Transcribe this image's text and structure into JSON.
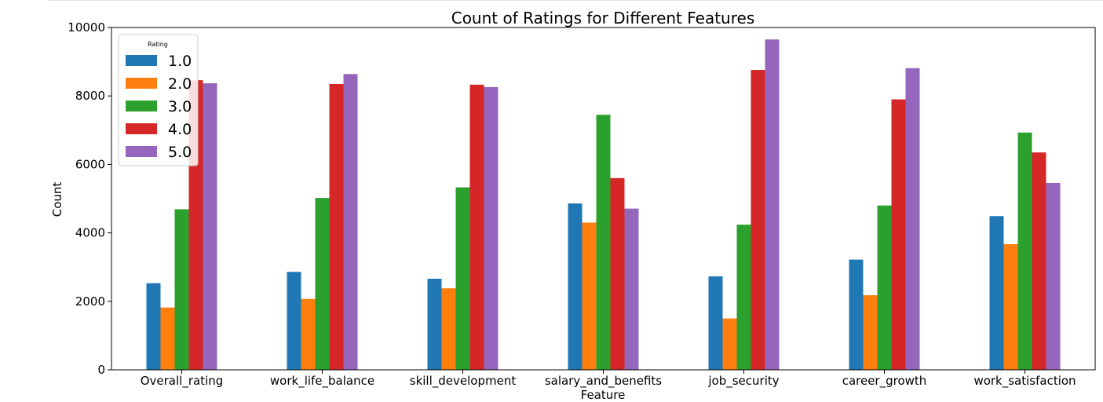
{
  "chart_data": {
    "type": "bar",
    "title": "Count of Ratings for Different Features",
    "xlabel": "Feature",
    "ylabel": "Count",
    "ylim": [
      0,
      10000
    ],
    "yticks": [
      "0",
      "2000",
      "4000",
      "6000",
      "8000",
      "10000"
    ],
    "categories": [
      "Overall_rating",
      "work_life_balance",
      "skill_development",
      "salary_and_benefits",
      "job_security",
      "career_growth",
      "work_satisfaction"
    ],
    "legend": {
      "title": "Rating",
      "placement": "top-left"
    },
    "series": [
      {
        "name": "1.0",
        "color": "#1f77b4",
        "values": [
          2530,
          2860,
          2660,
          4860,
          2730,
          3220,
          4490
        ]
      },
      {
        "name": "2.0",
        "color": "#ff7f0e",
        "values": [
          1820,
          2070,
          2380,
          4300,
          1500,
          2180,
          3670
        ]
      },
      {
        "name": "3.0",
        "color": "#2ca02c",
        "values": [
          4690,
          5020,
          5330,
          7450,
          4240,
          4800,
          6930
        ]
      },
      {
        "name": "4.0",
        "color": "#d62728",
        "values": [
          8460,
          8350,
          8330,
          5600,
          8760,
          7900,
          6350
        ]
      },
      {
        "name": "5.0",
        "color": "#9467bd",
        "values": [
          8370,
          8640,
          8260,
          4710,
          9650,
          8810,
          5460
        ]
      }
    ],
    "grid": false
  }
}
